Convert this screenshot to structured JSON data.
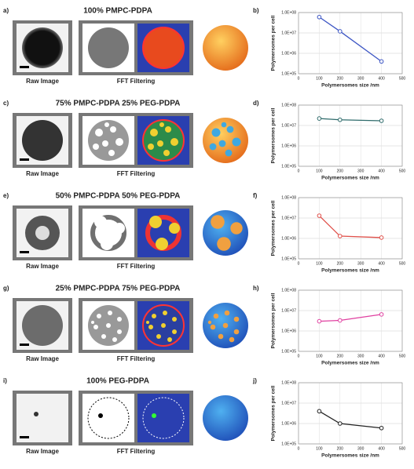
{
  "panels": [
    {
      "label": "a)",
      "title": "100% PMPC-PDPA",
      "raw": "Raw Image",
      "fft": "FFT Filtering"
    },
    {
      "label": "c)",
      "title": "75% PMPC-PDPA  25% PEG-PDPA",
      "raw": "Raw Image",
      "fft": "FFT Filtering"
    },
    {
      "label": "e)",
      "title": "50% PMPC-PDPA  50% PEG-PDPA",
      "raw": "Raw Image",
      "fft": "FFT Filtering"
    },
    {
      "label": "g)",
      "title": "25% PMPC-PDPA  75% PEG-PDPA",
      "raw": "Raw Image",
      "fft": "FFT Filtering"
    },
    {
      "label": "i)",
      "title": "100% PEG-PDPA",
      "raw": "Raw Image",
      "fft": "FFT Filtering"
    }
  ],
  "chart_data": [
    {
      "type": "line",
      "panel": "b)",
      "x": [
        100,
        200,
        400
      ],
      "values": [
        60000000,
        12000000,
        400000
      ],
      "color": "#3c55c4",
      "xlabel": "Polymersomes size /nm",
      "ylabel": "Polymersomes per cell",
      "yscale": "log",
      "grid": true,
      "xlim": [
        0,
        500
      ],
      "xticks": [
        0,
        100,
        200,
        300,
        400,
        500
      ],
      "ylim": [
        100000,
        100000000
      ],
      "yticks": [
        {
          "value": 100000,
          "label": "1.0E+05"
        },
        {
          "value": 1000000,
          "label": "1.0E+06"
        },
        {
          "value": 10000000,
          "label": "1.0E+07"
        },
        {
          "value": 100000000,
          "label": "1.0E+08"
        }
      ]
    },
    {
      "type": "line",
      "panel": "d)",
      "x": [
        100,
        200,
        400
      ],
      "values": [
        22000000,
        19000000,
        17000000
      ],
      "color": "#2e6b6b",
      "xlabel": "Polymersomes size /nm",
      "ylabel": "Polymersomes per cell",
      "yscale": "log",
      "grid": true,
      "xlim": [
        0,
        500
      ],
      "xticks": [
        0,
        100,
        200,
        300,
        400,
        500
      ],
      "ylim": [
        100000,
        100000000
      ],
      "yticks": [
        {
          "value": 100000,
          "label": "1.0E+05"
        },
        {
          "value": 1000000,
          "label": "1.0E+06"
        },
        {
          "value": 10000000,
          "label": "1.0E+07"
        },
        {
          "value": 100000000,
          "label": "1.0E+08"
        }
      ]
    },
    {
      "type": "line",
      "panel": "f)",
      "x": [
        100,
        200,
        400
      ],
      "values": [
        13000000,
        1300000,
        1100000
      ],
      "color": "#e0504a",
      "xlabel": "Polymersomes size /nm",
      "ylabel": "Polymersomes per cell",
      "yscale": "log",
      "grid": true,
      "xlim": [
        0,
        500
      ],
      "xticks": [
        0,
        100,
        200,
        300,
        400,
        500
      ],
      "ylim": [
        100000,
        100000000
      ],
      "yticks": [
        {
          "value": 100000,
          "label": "1.0E+05"
        },
        {
          "value": 1000000,
          "label": "1.0E+06"
        },
        {
          "value": 10000000,
          "label": "1.0E+07"
        },
        {
          "value": 100000000,
          "label": "1.0E+08"
        }
      ]
    },
    {
      "type": "line",
      "panel": "h)",
      "x": [
        100,
        200,
        400
      ],
      "values": [
        3000000,
        3300000,
        6500000
      ],
      "color": "#e040a0",
      "xlabel": "Polymersomes size /nm",
      "ylabel": "Polymersomes per cell",
      "yscale": "log",
      "grid": true,
      "xlim": [
        0,
        500
      ],
      "xticks": [
        0,
        100,
        200,
        300,
        400,
        500
      ],
      "ylim": [
        100000,
        100000000
      ],
      "yticks": [
        {
          "value": 100000,
          "label": "1.0E+05"
        },
        {
          "value": 1000000,
          "label": "1.0E+06"
        },
        {
          "value": 10000000,
          "label": "1.0E+07"
        },
        {
          "value": 100000000,
          "label": "1.0E+08"
        }
      ]
    },
    {
      "type": "line",
      "panel": "j)",
      "x": [
        100,
        200,
        400
      ],
      "values": [
        4000000,
        1000000,
        600000
      ],
      "color": "#222222",
      "xlabel": "Polymersomes size /nm",
      "ylabel": "Polymersomes per cell",
      "yscale": "log",
      "grid": true,
      "xlim": [
        0,
        500
      ],
      "xticks": [
        0,
        100,
        200,
        300,
        400,
        500
      ],
      "ylim": [
        100000,
        100000000
      ],
      "yticks": [
        {
          "value": 100000,
          "label": "1.0E+05"
        },
        {
          "value": 1000000,
          "label": "1.0E+06"
        },
        {
          "value": 10000000,
          "label": "1.0E+07"
        },
        {
          "value": 100000000,
          "label": "1.0E+08"
        }
      ]
    }
  ]
}
